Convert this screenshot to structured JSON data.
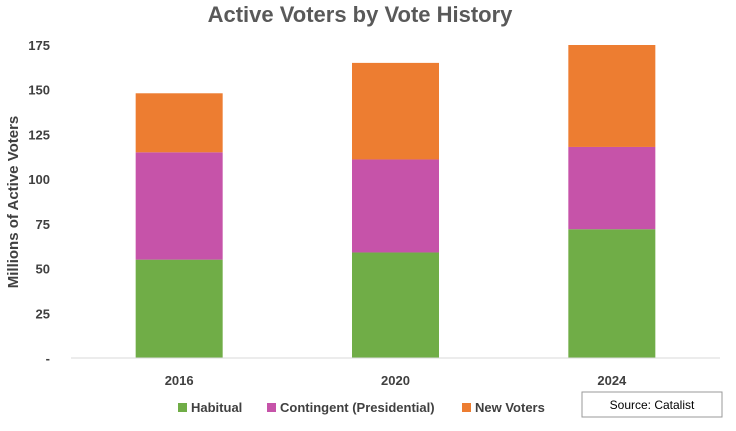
{
  "chart_data": {
    "type": "bar",
    "stacked": true,
    "title": "Active Voters by Vote History",
    "xlabel": "",
    "ylabel": "Millions of Active Voters",
    "ylim": [
      0,
      175
    ],
    "yticks": [
      0,
      25,
      50,
      75,
      100,
      125,
      150,
      175
    ],
    "ytick_labels": [
      "-",
      "25",
      "50",
      "75",
      "100",
      "125",
      "150",
      "175"
    ],
    "categories": [
      "2016",
      "2020",
      "2024"
    ],
    "series": [
      {
        "name": "Habitual",
        "values": [
          55,
          59,
          72
        ],
        "color": "#70ad47"
      },
      {
        "name": "Contingent (Presidential)",
        "values": [
          60,
          52,
          46
        ],
        "color": "#c653a9"
      },
      {
        "name": "New Voters",
        "values": [
          33,
          54,
          57
        ],
        "color": "#ed7d31"
      }
    ],
    "grid": false,
    "legend": "bottom",
    "source": "Source: Catalist"
  }
}
